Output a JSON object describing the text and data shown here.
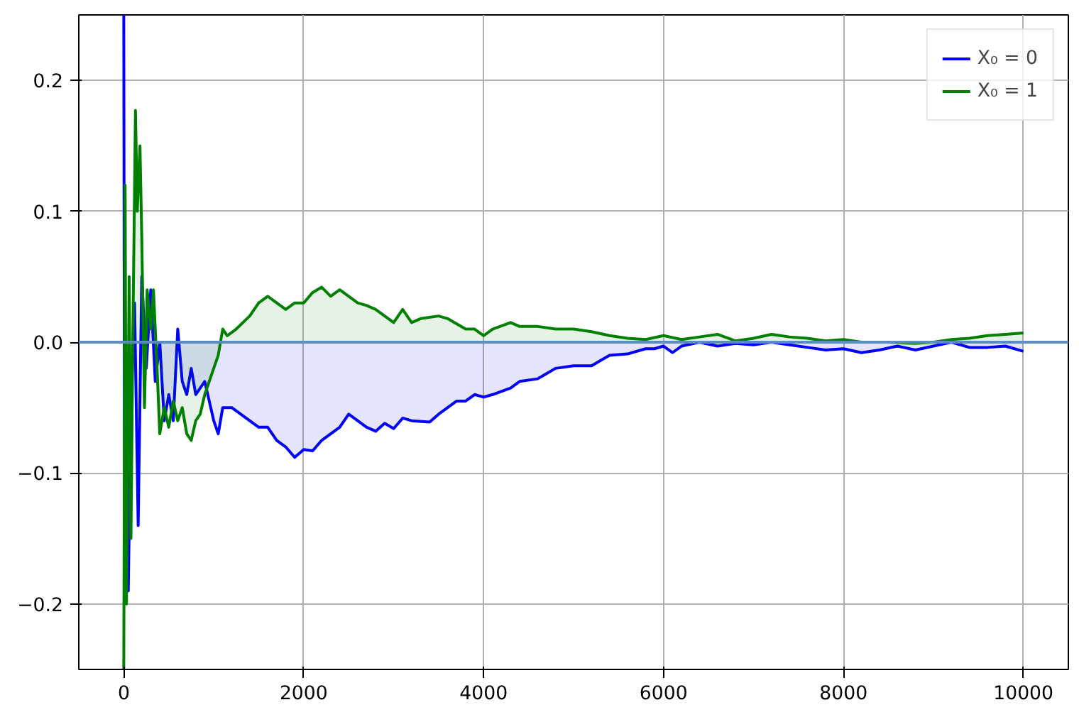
{
  "chart_data": {
    "type": "area",
    "xlim": [
      -500,
      10500
    ],
    "ylim": [
      -0.25,
      0.25
    ],
    "xticks": [
      0,
      2000,
      4000,
      6000,
      8000,
      10000
    ],
    "yticks": [
      {
        "value": -0.2,
        "label": "−0.2"
      },
      {
        "value": -0.1,
        "label": "−0.1"
      },
      {
        "value": 0,
        "label": "0.0"
      },
      {
        "value": 0.1,
        "label": "0.1"
      },
      {
        "value": 0.2,
        "label": "0.2"
      }
    ],
    "grid": true,
    "legend": "top right",
    "marker": "none",
    "line_style": "solid",
    "ref_lines": [
      {
        "axis": "y",
        "value": 0,
        "color": "#5b8cbf"
      }
    ],
    "series": [
      {
        "name": "X₀ = 0",
        "color": "#0000ff",
        "x": [
          0,
          10,
          30,
          50,
          80,
          120,
          160,
          200,
          250,
          300,
          350,
          400,
          450,
          500,
          550,
          600,
          650,
          700,
          750,
          800,
          900,
          1000,
          1050,
          1100,
          1200,
          1300,
          1400,
          1500,
          1600,
          1700,
          1800,
          1900,
          2000,
          2100,
          2200,
          2400,
          2500,
          2600,
          2700,
          2800,
          2900,
          3000,
          3100,
          3200,
          3400,
          3500,
          3700,
          3800,
          3900,
          4000,
          4100,
          4300,
          4400,
          4600,
          4800,
          5000,
          5200,
          5400,
          5600,
          5800,
          5900,
          6000,
          6100,
          6200,
          6400,
          6600,
          6800,
          7000,
          7200,
          7400,
          7600,
          7800,
          8000,
          8200,
          8400,
          8600,
          8800,
          9000,
          9200,
          9400,
          9600,
          9800,
          10000
        ],
        "values": [
          0.25,
          -0.19,
          -0.05,
          -0.19,
          -0.05,
          0.03,
          -0.14,
          0.05,
          -0.02,
          0.04,
          -0.03,
          0.0,
          -0.06,
          -0.04,
          -0.06,
          0.01,
          -0.03,
          -0.04,
          -0.02,
          -0.04,
          -0.03,
          -0.06,
          -0.07,
          -0.05,
          -0.05,
          -0.055,
          -0.06,
          -0.065,
          -0.065,
          -0.075,
          -0.08,
          -0.088,
          -0.082,
          -0.083,
          -0.075,
          -0.065,
          -0.055,
          -0.06,
          -0.065,
          -0.068,
          -0.062,
          -0.066,
          -0.058,
          -0.06,
          -0.061,
          -0.055,
          -0.045,
          -0.045,
          -0.04,
          -0.042,
          -0.04,
          -0.035,
          -0.03,
          -0.028,
          -0.02,
          -0.018,
          -0.018,
          -0.01,
          -0.009,
          -0.005,
          -0.005,
          -0.003,
          -0.008,
          -0.003,
          0.0,
          -0.003,
          -0.001,
          -0.002,
          0.0,
          -0.002,
          -0.004,
          -0.006,
          -0.005,
          -0.008,
          -0.006,
          -0.003,
          -0.006,
          -0.003,
          0.0,
          -0.004,
          -0.004,
          -0.003,
          -0.007
        ]
      },
      {
        "name": "X₀ = 1",
        "color": "#008000",
        "x": [
          0,
          15,
          30,
          60,
          80,
          100,
          130,
          150,
          180,
          200,
          230,
          260,
          300,
          330,
          370,
          400,
          450,
          500,
          550,
          600,
          650,
          700,
          750,
          800,
          850,
          900,
          1000,
          1050,
          1100,
          1150,
          1250,
          1400,
          1500,
          1600,
          1700,
          1800,
          1900,
          2000,
          2100,
          2200,
          2300,
          2400,
          2500,
          2600,
          2700,
          2800,
          2900,
          3000,
          3100,
          3200,
          3300,
          3500,
          3600,
          3800,
          3900,
          4000,
          4100,
          4300,
          4400,
          4600,
          4800,
          5000,
          5200,
          5400,
          5600,
          5800,
          6000,
          6200,
          6400,
          6600,
          6800,
          7000,
          7200,
          7400,
          7600,
          7800,
          8000,
          8200,
          8500,
          8800,
          9000,
          9200,
          9400,
          9600,
          9800,
          10000
        ],
        "values": [
          -0.25,
          0.12,
          -0.2,
          0.05,
          -0.15,
          0.0,
          0.177,
          0.1,
          0.15,
          0.08,
          -0.05,
          0.04,
          0.01,
          0.04,
          -0.02,
          -0.07,
          -0.05,
          -0.065,
          -0.045,
          -0.06,
          -0.05,
          -0.07,
          -0.075,
          -0.06,
          -0.055,
          -0.04,
          -0.02,
          -0.01,
          0.01,
          0.005,
          0.01,
          0.02,
          0.03,
          0.035,
          0.03,
          0.025,
          0.03,
          0.03,
          0.038,
          0.042,
          0.035,
          0.04,
          0.035,
          0.03,
          0.028,
          0.025,
          0.02,
          0.015,
          0.025,
          0.015,
          0.018,
          0.02,
          0.018,
          0.01,
          0.01,
          0.005,
          0.01,
          0.015,
          0.012,
          0.012,
          0.01,
          0.01,
          0.008,
          0.005,
          0.003,
          0.002,
          0.005,
          0.002,
          0.004,
          0.006,
          0.001,
          0.003,
          0.006,
          0.004,
          0.003,
          0.001,
          0.002,
          0.0,
          0.0,
          -0.001,
          0.0,
          0.002,
          0.003,
          0.005,
          0.006,
          0.007
        ]
      }
    ]
  }
}
